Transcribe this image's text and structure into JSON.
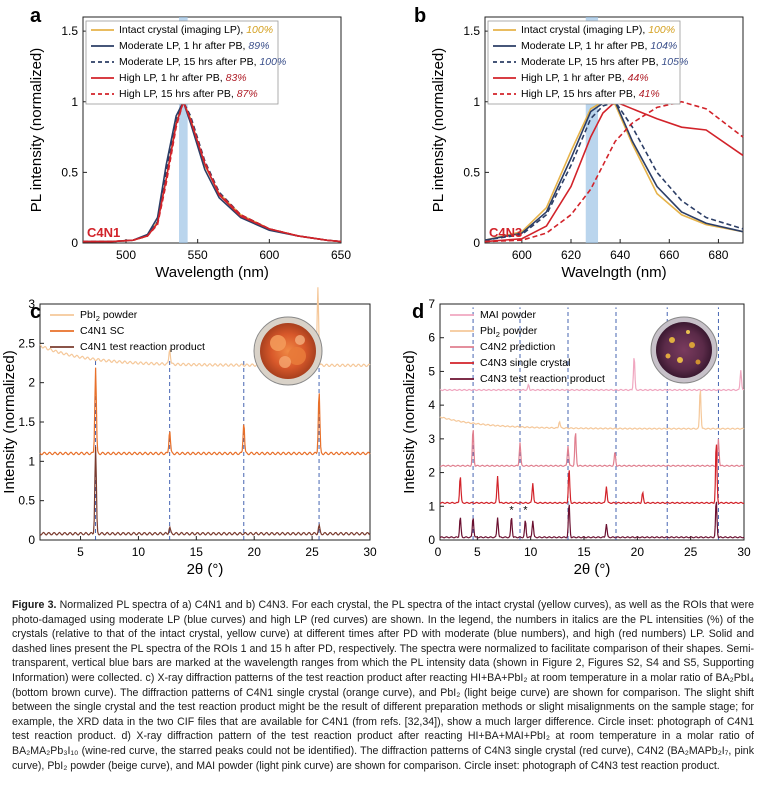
{
  "figure": {
    "panels": [
      {
        "label": "a",
        "tag": "C4N1",
        "xlabel": "Wavelength (nm)",
        "ylabel": "PL intensity (normalized)",
        "xticks": [
          "500",
          "550",
          "600",
          "650"
        ],
        "yticks": [
          "0",
          "0.5",
          "1",
          "1.5"
        ],
        "legend": [
          {
            "text": "Intact crystal (imaging LP), ",
            "pct": "100%",
            "color": "#e6b34a",
            "pct_color": "#d4a020",
            "dash": false
          },
          {
            "text": "Moderate LP, 1 hr after PB, ",
            "pct": "89%",
            "color": "#2c3e66",
            "pct_color": "#3a4f8a",
            "dash": false
          },
          {
            "text": "Moderate LP, 15 hrs after PB, ",
            "pct": "100%",
            "color": "#2c3e66",
            "pct_color": "#3a4f8a",
            "dash": true
          },
          {
            "text": "High LP, 1 hr after PB, ",
            "pct": "83%",
            "color": "#d2232a",
            "pct_color": "#b0202a",
            "dash": false
          },
          {
            "text": "High LP, 15 hrs after PB, ",
            "pct": "87%",
            "color": "#d2232a",
            "pct_color": "#b0202a",
            "dash": true
          }
        ]
      },
      {
        "label": "b",
        "tag": "C4N3",
        "xlabel": "Wavelngth (nm)",
        "ylabel": "PL intensity (normalized)",
        "xticks": [
          "600",
          "620",
          "640",
          "660",
          "680"
        ],
        "yticks": [
          "0",
          "0.5",
          "1",
          "1.5"
        ],
        "legend": [
          {
            "text": "Intact crystal (imaging LP), ",
            "pct": "100%",
            "color": "#e6b34a",
            "pct_color": "#d4a020",
            "dash": false
          },
          {
            "text": "Moderate LP, 1 hr after PB, ",
            "pct": "104%",
            "color": "#2c3e66",
            "pct_color": "#3a4f8a",
            "dash": false
          },
          {
            "text": "Moderate LP, 15 hrs after PB, ",
            "pct": "105%",
            "color": "#2c3e66",
            "pct_color": "#3a4f8a",
            "dash": true
          },
          {
            "text": "High LP, 1 hr after PB, ",
            "pct": "44%",
            "color": "#d2232a",
            "pct_color": "#b0202a",
            "dash": false
          },
          {
            "text": "High LP, 15 hrs after PB, ",
            "pct": "41%",
            "color": "#d2232a",
            "pct_color": "#b0202a",
            "dash": true
          }
        ]
      },
      {
        "label": "c",
        "xlabel": "2θ (°)",
        "ylabel": "Intensity (normalized)",
        "xticks": [
          "5",
          "10",
          "15",
          "20",
          "25",
          "30"
        ],
        "yticks": [
          "0",
          "0.5",
          "1",
          "1.5",
          "2",
          "2.5",
          "3"
        ],
        "legend": [
          {
            "pre": "PbI",
            "sub": "2",
            "post": " powder",
            "color": "#f5c89a"
          },
          {
            "pre": "C4N1 SC",
            "sub": "",
            "post": "",
            "color": "#e8702a"
          },
          {
            "pre": "C4N1 test reaction product",
            "sub": "",
            "post": "",
            "color": "#7a3b2e"
          }
        ]
      },
      {
        "label": "d",
        "xlabel": "2θ (°)",
        "ylabel": "Intensity (normalized)",
        "xticks": [
          "0",
          "5",
          "10",
          "15",
          "20",
          "25",
          "30"
        ],
        "yticks": [
          "0",
          "1",
          "2",
          "3",
          "4",
          "5",
          "6",
          "7"
        ],
        "legend": [
          {
            "pre": "MAI powder",
            "sub": "",
            "post": "",
            "color": "#f0a7c0"
          },
          {
            "pre": "PbI",
            "sub": "2",
            "post": " powder",
            "color": "#f5c89a"
          },
          {
            "pre": "C4N2 prediction",
            "sub": "",
            "post": "",
            "color": "#e07f8f"
          },
          {
            "pre": "C4N3 single crystal",
            "sub": "",
            "post": "",
            "color": "#d2232a"
          },
          {
            "pre": "C4N3 test reaction product",
            "sub": "",
            "post": "",
            "color": "#6b1030"
          }
        ]
      }
    ]
  },
  "chart_data": [
    {
      "type": "line",
      "panel": "a",
      "xlim": [
        470,
        650
      ],
      "ylim": [
        0,
        1.6
      ],
      "x": [
        470,
        490,
        505,
        515,
        522,
        528,
        535,
        540,
        545,
        555,
        565,
        580,
        600,
        620,
        640,
        650
      ],
      "series": [
        {
          "values": [
            0.01,
            0.01,
            0.02,
            0.05,
            0.15,
            0.45,
            0.85,
            1.0,
            0.88,
            0.55,
            0.35,
            0.2,
            0.1,
            0.05,
            0.02,
            0.01
          ]
        },
        {
          "values": [
            0.01,
            0.01,
            0.02,
            0.06,
            0.18,
            0.55,
            0.9,
            1.0,
            0.85,
            0.52,
            0.32,
            0.18,
            0.09,
            0.05,
            0.02,
            0.01
          ]
        },
        {
          "values": [
            0.01,
            0.01,
            0.02,
            0.05,
            0.15,
            0.5,
            0.88,
            1.0,
            0.9,
            0.58,
            0.36,
            0.2,
            0.1,
            0.05,
            0.02,
            0.01
          ]
        },
        {
          "values": [
            0.01,
            0.01,
            0.02,
            0.05,
            0.14,
            0.45,
            0.84,
            1.0,
            0.87,
            0.56,
            0.34,
            0.19,
            0.1,
            0.05,
            0.02,
            0.01
          ]
        },
        {
          "values": [
            0.01,
            0.01,
            0.02,
            0.05,
            0.13,
            0.42,
            0.82,
            1.0,
            0.88,
            0.57,
            0.35,
            0.2,
            0.1,
            0.05,
            0.02,
            0.01
          ]
        }
      ],
      "highlight_band": [
        537,
        543
      ]
    },
    {
      "type": "line",
      "panel": "b",
      "xlim": [
        585,
        690
      ],
      "ylim": [
        0,
        1.6
      ],
      "x": [
        585,
        600,
        610,
        620,
        628,
        633,
        638,
        645,
        655,
        665,
        675,
        690
      ],
      "series": [
        {
          "values": [
            0.02,
            0.08,
            0.25,
            0.65,
            0.95,
            1.0,
            0.98,
            0.7,
            0.35,
            0.2,
            0.13,
            0.08
          ]
        },
        {
          "values": [
            0.02,
            0.07,
            0.22,
            0.6,
            0.93,
            0.99,
            1.0,
            0.72,
            0.4,
            0.22,
            0.14,
            0.08
          ]
        },
        {
          "values": [
            0.02,
            0.06,
            0.2,
            0.55,
            0.88,
            0.97,
            1.0,
            0.82,
            0.5,
            0.3,
            0.18,
            0.1
          ]
        },
        {
          "values": [
            0.01,
            0.03,
            0.12,
            0.4,
            0.75,
            0.92,
            1.0,
            0.95,
            0.88,
            0.82,
            0.8,
            0.62
          ]
        },
        {
          "values": [
            0.01,
            0.02,
            0.07,
            0.2,
            0.38,
            0.55,
            0.72,
            0.85,
            0.96,
            1.0,
            0.95,
            0.75
          ]
        }
      ],
      "highlight_band": [
        626,
        631
      ]
    },
    {
      "type": "line",
      "panel": "c",
      "xlim": [
        1.5,
        30
      ],
      "ylim": [
        0,
        3
      ],
      "peaks": {
        "PbI2 powder": [
          12.7,
          25.5
        ],
        "C4N1 SC": [
          6.3,
          12.7,
          19.1,
          25.6
        ],
        "C4N1 test reaction product": [
          6.3,
          12.7,
          25.6
        ]
      },
      "dashed_lines": [
        6.3,
        12.7,
        19.1,
        25.6
      ]
    },
    {
      "type": "line",
      "panel": "d",
      "xlim": [
        1.5,
        30
      ],
      "ylim": [
        0,
        7
      ],
      "peaks": {
        "MAI powder": [
          9.8,
          19.7,
          29.7
        ],
        "PbI2 powder": [
          12.7,
          25.9
        ],
        "C4N2 prediction": [
          4.6,
          9.0,
          13.5,
          14.2,
          17.9,
          27.6
        ],
        "C4N3 single crystal": [
          3.4,
          6.9,
          10.2,
          13.6,
          17.1,
          20.5,
          27.4
        ],
        "C4N3 test reaction product": [
          3.4,
          4.6,
          6.9,
          8.2,
          9.5,
          10.2,
          13.6,
          17.1,
          27.4
        ]
      },
      "dashed_lines": [
        4.6,
        9.0,
        13.5,
        18.0,
        22.8,
        27.6
      ]
    }
  ],
  "caption": {
    "title": "Figure 3.",
    "text": "Normalized PL spectra of a) C4N1 and b) C4N3. For each crystal, the PL spectra of the intact crystal (yellow curves), as well as the ROIs that were photo-damaged using moderate LP (blue curves) and high LP (red curves) are shown. In the legend, the numbers in italics are the PL intensities (%) of the crystals (relative to that of the intact crystal, yellow curve) at different times after PD with moderate (blue numbers), and high (red numbers) LP. Solid and dashed lines present the PL spectra of the ROIs 1 and 15 h after PD, respectively. The spectra were normalized to facilitate comparison of their shapes. Semi-transparent, vertical blue bars are marked at the wavelength ranges from which the PL intensity data (shown in Figure 2, Figures S2, S4 and S5, Supporting Information) were collected. c) X-ray diffraction patterns of the test reaction product after reacting HI+BA+PbI₂ at room temperature in a molar ratio of BA₂PbI₄ (bottom brown curve). The diffraction patterns of C4N1 single crystal (orange curve), and PbI₂ (light beige curve) are shown for comparison. The slight shift between the single crystal and the test reaction product might be the result of different preparation methods or slight misalignments on the sample stage; for example, the XRD data in the two CIF files that are available for C4N1 (from refs. [32,34]), show a much larger difference. Circle inset: photograph of C4N1 test reaction product. d) X-ray diffraction pattern of the test reaction product after reacting HI+BA+MAI+PbI₂ at room temperature in a molar ratio of BA₂MA₂Pb₃I₁₀ (wine-red curve, the starred peaks could not be identified). The diffraction patterns of C4N3 single crystal (red curve), C4N2 (BA₂MAPb₂I₇, pink curve), PbI₂ powder (beige curve), and MAI powder (light pink curve) are shown for comparison. Circle inset: photograph of C4N3 test reaction product."
  }
}
